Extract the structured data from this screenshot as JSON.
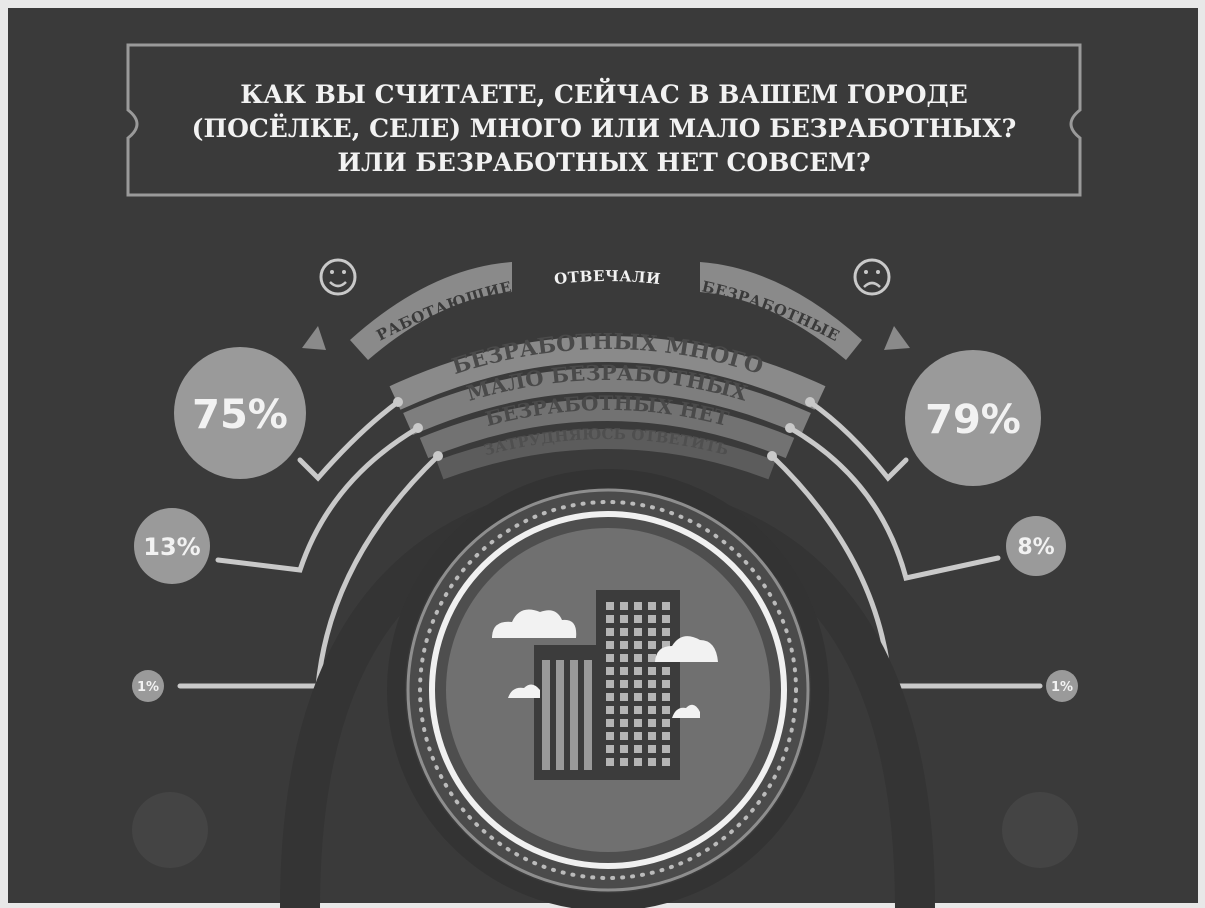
{
  "header": {
    "question_line1": "КАК ВЫ СЧИТАЕТЕ, СЕЙЧАС В  ВАШЕМ  ГОРОДЕ",
    "question_line2": "(ПОСЁЛКЕ, СЕЛЕ) МНОГО ИЛИ МАЛО БЕЗРАБОТНЫХ?",
    "question_line3": "ИЛИ БЕЗРАБОТНЫХ НЕТ СОВСЕМ?"
  },
  "groups": {
    "working_label": "РАБОТАЮЩИЕ",
    "answered_label": "ОТВЕЧАЛИ",
    "unemployed_label": "БЕЗРАБОТНЫЕ"
  },
  "answers": [
    "БЕЗРАБОТНЫХ МНОГО",
    "МАЛО БЕЗРАБОТНЫХ",
    "БЕЗРАБОТНЫХ НЕТ",
    "ЗАТРУДНЯЮСЬ ОТВЕТИТЬ"
  ],
  "working_values": [
    "75%",
    "13%",
    "1%"
  ],
  "unemployed_values": [
    "79%",
    "8%",
    "1%"
  ],
  "colors": {
    "background": "#3a3a3a",
    "ribbon": "#8a8a8a",
    "line": "#c9c9c9",
    "bubble": "#9a9a9a",
    "text_light": "#f2f2f2",
    "text_dark": "#3a3a3a"
  },
  "icons": [
    "smiley-icon",
    "sad-face-icon",
    "city-buildings-icon",
    "cloud-icon"
  ]
}
